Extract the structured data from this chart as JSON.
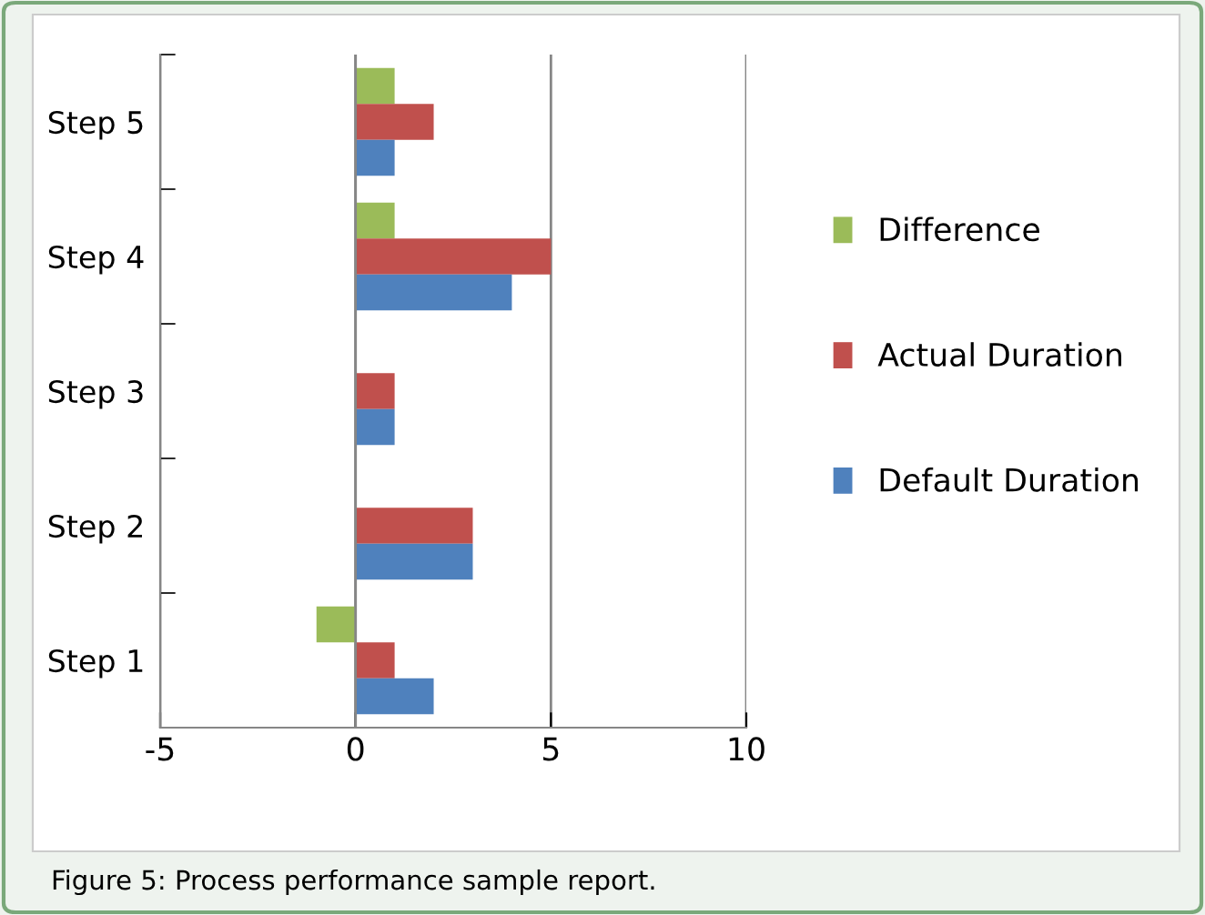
{
  "chart_data": {
    "type": "bar",
    "orientation": "horizontal",
    "categories": [
      "Step 5",
      "Step 4",
      "Step 3",
      "Step 2",
      "Step 1"
    ],
    "series": [
      {
        "name": "Difference",
        "color": "#9bbb59",
        "values": [
          1,
          1,
          0,
          0,
          -1
        ]
      },
      {
        "name": "Actual Duration",
        "color": "#c0504d",
        "values": [
          2,
          5,
          1,
          3,
          1
        ]
      },
      {
        "name": "Default Duration",
        "color": "#4f81bd",
        "values": [
          1,
          4,
          1,
          3,
          2
        ]
      }
    ],
    "xlim": [
      -5,
      10
    ],
    "xticks": [
      -5,
      0,
      5,
      10
    ],
    "grid": "x",
    "legend": "right",
    "annotations": [
      "Figure 5: Process performance sample report."
    ]
  }
}
